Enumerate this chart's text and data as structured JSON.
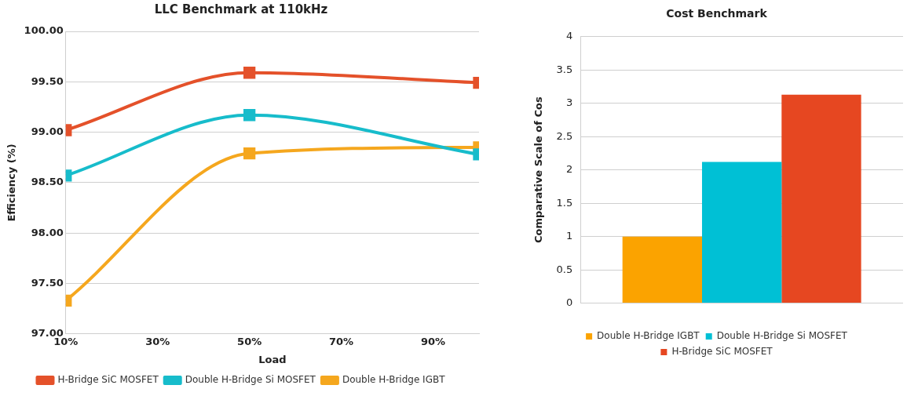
{
  "chart_data": [
    {
      "type": "line",
      "title": "LLC Benchmark at 110kHz",
      "xlabel": "Load",
      "ylabel": "Efficiency (%)",
      "x": [
        10,
        50,
        100
      ],
      "series": [
        {
          "name": "H-Bridge SiC MOSFET",
          "color": "#e4512a",
          "values": [
            99.02,
            99.59,
            99.49
          ]
        },
        {
          "name": "Double H-Bridge Si MOSFET",
          "color": "#17bccb",
          "values": [
            98.57,
            99.17,
            98.78
          ]
        },
        {
          "name": "Double H-Bridge IGBT",
          "color": "#f5a71e",
          "values": [
            97.33,
            98.79,
            98.85
          ]
        }
      ],
      "xlim": [
        10,
        100
      ],
      "xticks": [
        {
          "value": 10,
          "label": "10%"
        },
        {
          "value": 30,
          "label": "30%"
        },
        {
          "value": 50,
          "label": "50%"
        },
        {
          "value": 70,
          "label": "70%"
        },
        {
          "value": 90,
          "label": "90%"
        }
      ],
      "ylim": [
        97,
        100
      ],
      "yticks": [
        {
          "value": 97,
          "label": "97.00"
        },
        {
          "value": 97.5,
          "label": "97.50"
        },
        {
          "value": 98,
          "label": "98.00"
        },
        {
          "value": 98.5,
          "label": "98.50"
        },
        {
          "value": 99,
          "label": "99.00"
        },
        {
          "value": 99.5,
          "label": "99.50"
        },
        {
          "value": 100,
          "label": "100.00"
        }
      ],
      "grid": "y",
      "legend": "bottom",
      "marker": "square",
      "line_style": "solid"
    },
    {
      "type": "bar",
      "title": "Cost Benchmark",
      "ylabel": "Comparative Scale of Cos",
      "categories": [
        null
      ],
      "series": [
        {
          "name": "Double H-Bridge IGBT",
          "color": "#fba300",
          "values": [
            1
          ]
        },
        {
          "name": "Double H-Bridge Si MOSFET",
          "color": "#00c0d5",
          "values": [
            2.12
          ]
        },
        {
          "name": "H-Bridge SiC MOSFET",
          "color": "#e64721",
          "values": [
            3.13
          ]
        }
      ],
      "ylim": [
        0,
        4
      ],
      "yticks": [
        0,
        0.5,
        1,
        1.5,
        2,
        2.5,
        3,
        3.5,
        4
      ],
      "grid": "y",
      "legend": "bottom"
    }
  ]
}
